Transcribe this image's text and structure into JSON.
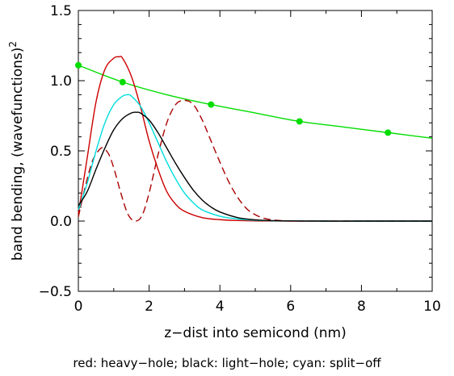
{
  "chart_data": {
    "type": "line",
    "title": "",
    "xlabel": "z−dist into semicond (nm)",
    "ylabel": "band bending, (wavefunctions)",
    "ylabel_superscript": "2",
    "caption": "red: heavy−hole; black: light−hole; cyan: split−off",
    "xlim": [
      0,
      10
    ],
    "ylim": [
      -0.5,
      1.5
    ],
    "x_ticks": [
      "0",
      "2",
      "4",
      "6",
      "8",
      "10"
    ],
    "y_ticks": [
      "−0.5",
      "0.0",
      "0.5",
      "1.0",
      "1.5"
    ],
    "x_tick_values": [
      0,
      2,
      4,
      6,
      8,
      10
    ],
    "y_tick_values": [
      -0.5,
      0.0,
      0.5,
      1.0,
      1.5
    ],
    "grid": false,
    "series": [
      {
        "color": "#00dd00",
        "style": "solid",
        "markers": true,
        "x": [
          0.0,
          1.25,
          2.5,
          3.75,
          5.0,
          6.25,
          7.5,
          8.75,
          10.0
        ],
        "values": [
          1.11,
          0.99,
          0.9,
          0.83,
          0.77,
          0.71,
          0.67,
          0.63,
          0.59
        ],
        "marker_x": [
          0.0,
          1.25,
          3.75,
          6.25,
          8.75
        ],
        "marker_values": [
          1.11,
          0.99,
          0.83,
          0.71,
          0.63
        ]
      },
      {
        "color": "#cc0000",
        "style": "solid",
        "x": [
          0.0,
          0.25,
          0.5,
          0.75,
          1.0,
          1.15,
          1.25,
          1.5,
          1.75,
          2.0,
          2.25,
          2.5,
          2.75,
          3.0,
          3.5,
          4.0,
          4.5,
          5.0,
          6.0,
          7.0,
          8.0,
          10.0
        ],
        "values": [
          0.05,
          0.45,
          0.85,
          1.08,
          1.16,
          1.17,
          1.16,
          1.03,
          0.82,
          0.57,
          0.37,
          0.21,
          0.12,
          0.07,
          0.025,
          0.01,
          0.004,
          0.001,
          0.0,
          0.0,
          0.0,
          0.0
        ]
      },
      {
        "color": "#aa0000",
        "style": "dashed",
        "x": [
          0.0,
          0.2,
          0.4,
          0.6,
          0.7,
          0.85,
          1.0,
          1.2,
          1.4,
          1.6,
          1.8,
          2.0,
          2.25,
          2.5,
          2.75,
          3.0,
          3.25,
          3.5,
          3.75,
          4.0,
          4.25,
          4.5,
          4.75,
          5.0,
          5.25,
          5.5,
          5.75,
          6.0,
          7.0,
          8.0,
          10.0
        ],
        "values": [
          0.03,
          0.25,
          0.43,
          0.51,
          0.52,
          0.48,
          0.38,
          0.2,
          0.05,
          0.0,
          0.04,
          0.2,
          0.47,
          0.7,
          0.83,
          0.86,
          0.83,
          0.72,
          0.57,
          0.42,
          0.28,
          0.17,
          0.09,
          0.045,
          0.02,
          0.008,
          0.003,
          0.001,
          0.0,
          0.0,
          0.0
        ]
      },
      {
        "color": "#00dddd",
        "style": "solid",
        "x": [
          0.0,
          0.25,
          0.5,
          0.75,
          1.0,
          1.25,
          1.4,
          1.5,
          1.75,
          2.0,
          2.25,
          2.5,
          2.75,
          3.0,
          3.25,
          3.5,
          4.0,
          4.5,
          5.0,
          5.5,
          6.0,
          7.0,
          8.0,
          10.0
        ],
        "values": [
          0.08,
          0.27,
          0.5,
          0.7,
          0.83,
          0.89,
          0.9,
          0.89,
          0.82,
          0.7,
          0.56,
          0.42,
          0.3,
          0.2,
          0.13,
          0.08,
          0.035,
          0.015,
          0.006,
          0.002,
          0.001,
          0.0,
          0.0,
          0.0
        ]
      },
      {
        "color": "#000000",
        "style": "solid",
        "x": [
          0.0,
          0.25,
          0.5,
          0.75,
          1.0,
          1.25,
          1.5,
          1.65,
          1.75,
          2.0,
          2.25,
          2.5,
          2.75,
          3.0,
          3.25,
          3.5,
          3.75,
          4.0,
          4.5,
          5.0,
          5.5,
          6.0,
          7.0,
          8.0,
          10.0
        ],
        "values": [
          0.11,
          0.21,
          0.37,
          0.52,
          0.65,
          0.73,
          0.77,
          0.775,
          0.77,
          0.72,
          0.63,
          0.52,
          0.41,
          0.31,
          0.22,
          0.15,
          0.1,
          0.065,
          0.025,
          0.009,
          0.003,
          0.001,
          0.0,
          0.0,
          0.0
        ]
      }
    ]
  }
}
